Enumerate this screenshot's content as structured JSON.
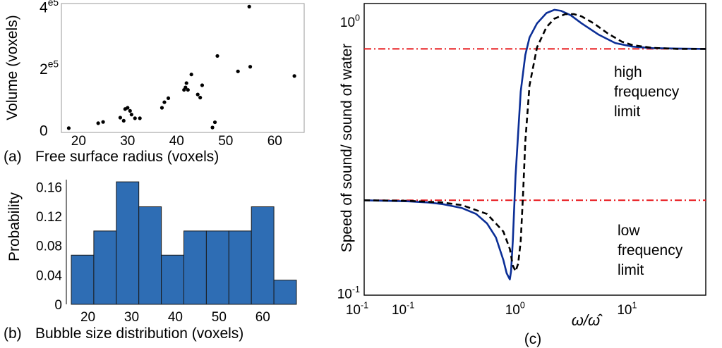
{
  "chart_data": [
    {
      "type": "scatter",
      "panel_label": "(a)",
      "xlabel": "Free surface radius (voxels)",
      "ylabel": "Volume (voxels)",
      "xlim": [
        16.5,
        66
      ],
      "ylim": [
        -8000,
        410000
      ],
      "x_ticks": [
        20,
        30,
        40,
        50,
        60
      ],
      "x_tick_labels": [
        "20",
        "30",
        "40",
        "50",
        "60"
      ],
      "y_ticks": [
        0,
        200000,
        400000
      ],
      "y_tick_labels": [
        {
          "mantissa": "0",
          "exp": ""
        },
        {
          "mantissa": "2",
          "exp": "e5"
        },
        {
          "mantissa": "4",
          "exp": "e5"
        }
      ],
      "marker_color": "#000000",
      "points": [
        {
          "x": 18,
          "y": 6000
        },
        {
          "x": 24,
          "y": 22000
        },
        {
          "x": 25,
          "y": 26000
        },
        {
          "x": 28.5,
          "y": 40000
        },
        {
          "x": 29.2,
          "y": 30000
        },
        {
          "x": 29.5,
          "y": 68000
        },
        {
          "x": 30,
          "y": 72000
        },
        {
          "x": 30.5,
          "y": 62000
        },
        {
          "x": 30.8,
          "y": 50000
        },
        {
          "x": 31.5,
          "y": 38000
        },
        {
          "x": 32.5,
          "y": 38000
        },
        {
          "x": 37,
          "y": 72000
        },
        {
          "x": 37.5,
          "y": 90000
        },
        {
          "x": 38.3,
          "y": 103000
        },
        {
          "x": 41.5,
          "y": 130000
        },
        {
          "x": 41.8,
          "y": 138000
        },
        {
          "x": 42,
          "y": 152000
        },
        {
          "x": 42.3,
          "y": 130000
        },
        {
          "x": 43,
          "y": 180000
        },
        {
          "x": 44.3,
          "y": 115000
        },
        {
          "x": 44.8,
          "y": 105000
        },
        {
          "x": 45.2,
          "y": 145000
        },
        {
          "x": 47.3,
          "y": 8000
        },
        {
          "x": 47.8,
          "y": 25000
        },
        {
          "x": 48.3,
          "y": 240000
        },
        {
          "x": 52.5,
          "y": 190000
        },
        {
          "x": 54.8,
          "y": 400000
        },
        {
          "x": 55,
          "y": 205000
        },
        {
          "x": 64,
          "y": 175000
        }
      ]
    },
    {
      "type": "bar",
      "panel_label": "(b)",
      "xlabel": "Bubble size distribution (voxels)",
      "ylabel": "Probability",
      "xlim": [
        15,
        66
      ],
      "ylim": [
        0,
        0.17
      ],
      "x_ticks": [
        20,
        30,
        40,
        50,
        60
      ],
      "x_tick_labels": [
        "20",
        "30",
        "40",
        "50",
        "60"
      ],
      "y_ticks": [
        0,
        0.04,
        0.08,
        0.12,
        0.16
      ],
      "y_tick_labels": [
        "0",
        "0.04",
        "0.08",
        "0.12",
        "0.16"
      ],
      "bar_color": "#2e6db4",
      "bar_edge_color": "#1a1a1a",
      "bin_edges": [
        16.2,
        21.35,
        26.5,
        31.65,
        36.8,
        41.95,
        47.1,
        52.25,
        57.4,
        62.55,
        67.7
      ],
      "values": [
        0.067,
        0.1,
        0.167,
        0.133,
        0.067,
        0.1,
        0.1,
        0.1,
        0.133,
        0.033
      ]
    },
    {
      "type": "line",
      "panel_label": "(c)",
      "xlabel": "ω/ω̂",
      "ylabel": "Speed of sound/ sound of water",
      "x_scale": "log",
      "y_scale": "log",
      "xlim": [
        0.04,
        45
      ],
      "ylim": [
        0.098,
        1.16
      ],
      "x_tick_labels": [
        {
          "value": 0.1,
          "base": "10",
          "exp": "-1"
        },
        {
          "value": 1,
          "base": "10",
          "exp": "0"
        },
        {
          "value": 10,
          "base": "10",
          "exp": "1"
        }
      ],
      "y_tick_labels": [
        {
          "value": 0.1,
          "base": "10",
          "exp": "-1"
        },
        {
          "value": 1,
          "base": "10",
          "exp": "0"
        }
      ],
      "reference_lines": [
        {
          "y": 0.79,
          "color": "#e8171b",
          "style": "dash-dot"
        },
        {
          "y": 0.219,
          "color": "#e8171b",
          "style": "dash-dot"
        }
      ],
      "annotations": [
        {
          "lines": [
            "high",
            "frequency",
            "limit"
          ]
        },
        {
          "lines": [
            "low",
            "frequency",
            "limit"
          ]
        }
      ],
      "series": [
        {
          "color": "#0b2e96",
          "style": "solid",
          "x": [
            0.04,
            0.1,
            0.15,
            0.2,
            0.3,
            0.4,
            0.5,
            0.6,
            0.7,
            0.75,
            0.8,
            0.82,
            0.85,
            0.9,
            1.0,
            1.1,
            1.2,
            1.4,
            1.7,
            2.0,
            2.3,
            2.8,
            3.5,
            5,
            7,
            10,
            15,
            25,
            45
          ],
          "y": [
            0.219,
            0.217,
            0.215,
            0.212,
            0.205,
            0.195,
            0.18,
            0.16,
            0.132,
            0.118,
            0.112,
            0.12,
            0.155,
            0.27,
            0.55,
            0.75,
            0.87,
            0.98,
            1.07,
            1.1,
            1.09,
            1.05,
            0.98,
            0.89,
            0.83,
            0.805,
            0.795,
            0.792,
            0.79
          ]
        },
        {
          "color": "#000000",
          "style": "dashed",
          "x": [
            0.04,
            0.1,
            0.2,
            0.3,
            0.5,
            0.7,
            0.8,
            0.85,
            0.9,
            0.95,
            1.0,
            1.05,
            1.1,
            1.2,
            1.4,
            1.7,
            2.0,
            2.5,
            3.0,
            3.5,
            4.5,
            6,
            8,
            10,
            15,
            25,
            45
          ],
          "y": [
            0.219,
            0.218,
            0.215,
            0.21,
            0.195,
            0.168,
            0.145,
            0.126,
            0.12,
            0.128,
            0.155,
            0.23,
            0.36,
            0.58,
            0.8,
            0.95,
            1.02,
            1.06,
            1.06,
            1.04,
            0.98,
            0.9,
            0.84,
            0.815,
            0.797,
            0.79,
            0.79
          ]
        }
      ]
    }
  ]
}
